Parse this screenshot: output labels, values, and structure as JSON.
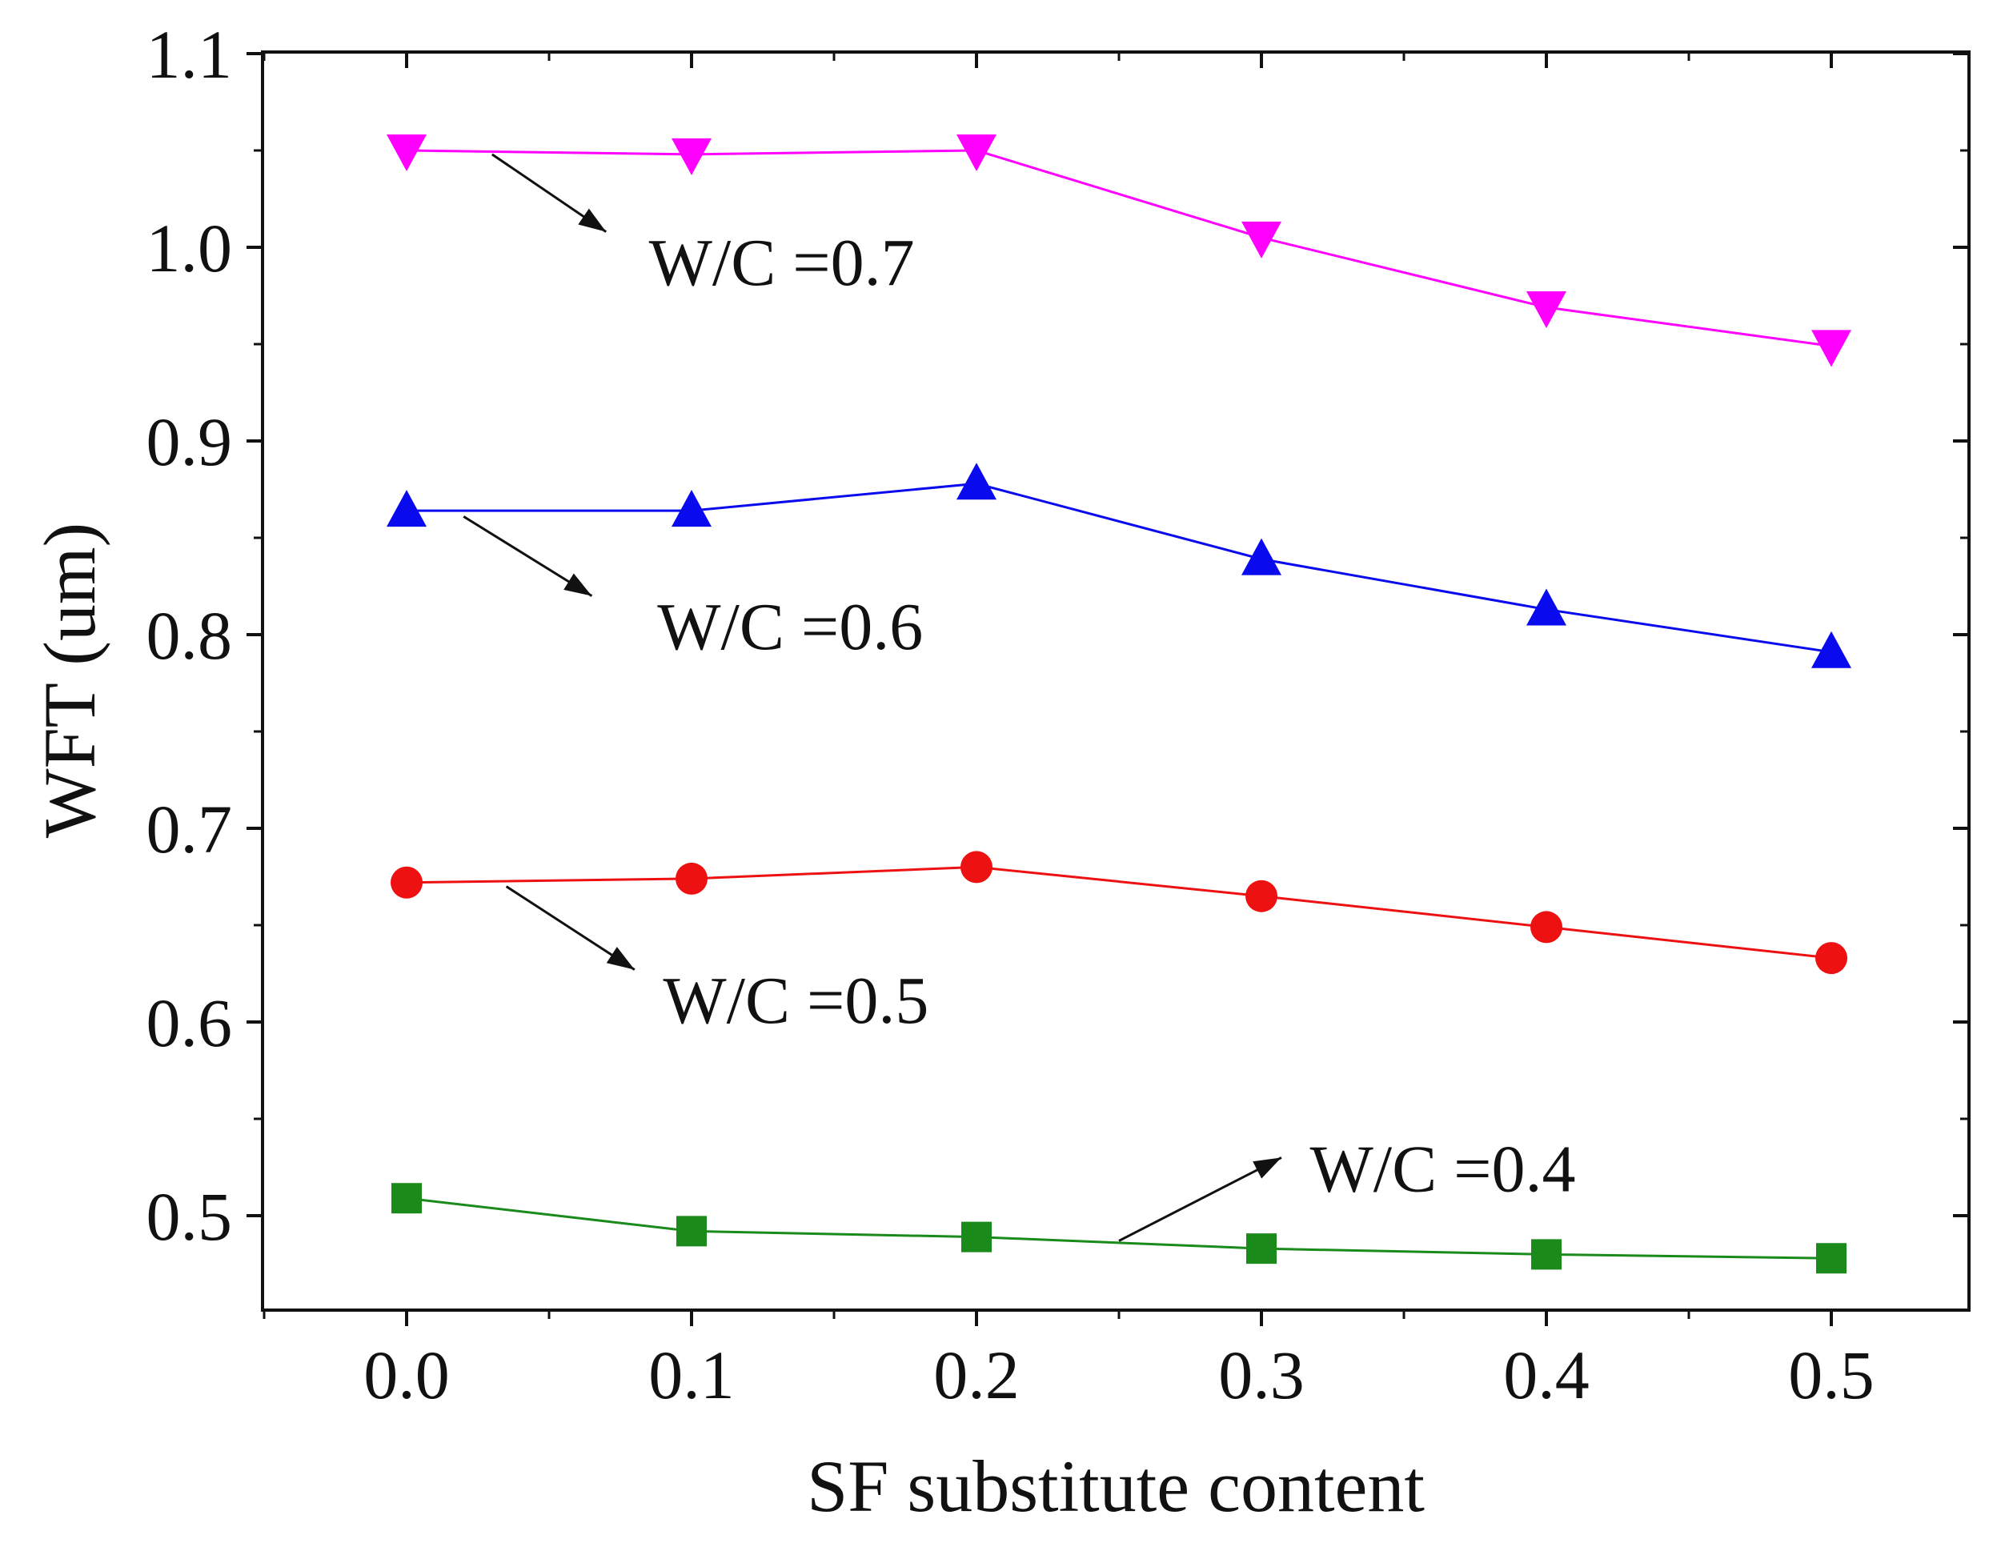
{
  "chart_data": {
    "type": "line",
    "title": "",
    "xlabel": "SF substitute content",
    "ylabel": "WFT (um)",
    "xlim": [
      -0.05,
      0.55
    ],
    "ylim": [
      0.45,
      1.1
    ],
    "grid": false,
    "x": [
      0.0,
      0.1,
      0.2,
      0.3,
      0.4,
      0.5
    ],
    "x_ticks": [
      "0.0",
      "0.1",
      "0.2",
      "0.3",
      "0.4",
      "0.5"
    ],
    "y_ticks": [
      "0.5",
      "0.6",
      "0.7",
      "0.8",
      "0.9",
      "1.0",
      "1.1"
    ],
    "y_tick_values": [
      0.5,
      0.6,
      0.7,
      0.8,
      0.9,
      1.0,
      1.1
    ],
    "series": [
      {
        "name": "W/C =0.4",
        "color": "#1a8a1a",
        "marker": "square",
        "values": [
          0.509,
          0.492,
          0.489,
          0.483,
          0.48,
          0.478
        ]
      },
      {
        "name": "W/C =0.5",
        "color": "#ee1111",
        "marker": "circle",
        "values": [
          0.672,
          0.674,
          0.68,
          0.665,
          0.649,
          0.633
        ]
      },
      {
        "name": "W/C =0.6",
        "color": "#0a0aee",
        "marker": "triangle-up",
        "values": [
          0.864,
          0.864,
          0.878,
          0.839,
          0.813,
          0.791
        ]
      },
      {
        "name": "W/C =0.7",
        "color": "#ff00ff",
        "marker": "triangle-down",
        "values": [
          1.05,
          1.048,
          1.05,
          1.005,
          0.969,
          0.949
        ]
      }
    ],
    "annotations": [
      {
        "text": "W/C =0.7",
        "arrow_from": [
          0.03,
          1.048
        ],
        "arrow_to": [
          0.07,
          1.008
        ],
        "label_at": [
          0.085,
          0.993
        ]
      },
      {
        "text": "W/C =0.6",
        "arrow_from": [
          0.02,
          0.861
        ],
        "arrow_to": [
          0.065,
          0.82
        ],
        "label_at": [
          0.088,
          0.805
        ]
      },
      {
        "text": "W/C =0.5",
        "arrow_from": [
          0.035,
          0.67
        ],
        "arrow_to": [
          0.08,
          0.627
        ],
        "label_at": [
          0.09,
          0.612
        ]
      },
      {
        "text": "W/C =0.4",
        "arrow_from": [
          0.25,
          0.487
        ],
        "arrow_to": [
          0.307,
          0.53
        ],
        "label_at": [
          0.317,
          0.525
        ]
      }
    ]
  }
}
